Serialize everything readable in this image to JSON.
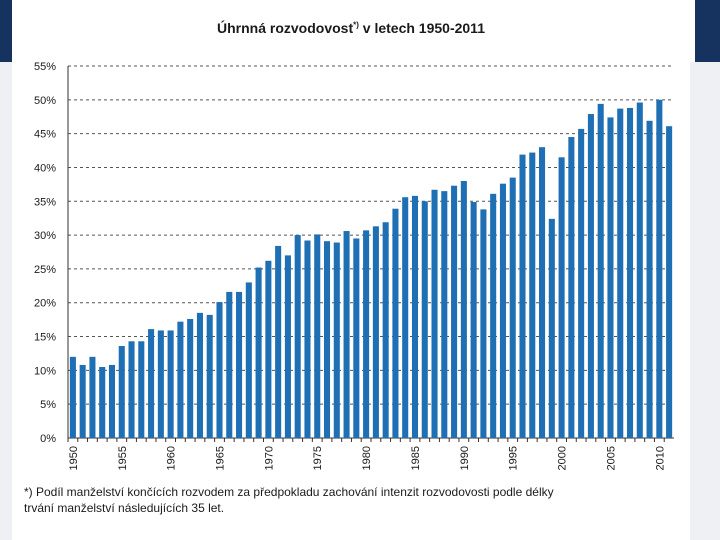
{
  "chart_data": {
    "type": "bar",
    "title": "Úhrnná rozvodovost",
    "title_note": "*)",
    "title_suffix": " v letech 1950-2011",
    "xlabel": "",
    "ylabel": "",
    "ylim": [
      0,
      55
    ],
    "y_ticks": [
      "0%",
      "5%",
      "10%",
      "15%",
      "20%",
      "25%",
      "30%",
      "35%",
      "40%",
      "45%",
      "50%",
      "55%"
    ],
    "grid": true,
    "bar_color": "#1f6fb4",
    "categories": [
      1950,
      1951,
      1952,
      1953,
      1954,
      1955,
      1956,
      1957,
      1958,
      1959,
      1960,
      1961,
      1962,
      1963,
      1964,
      1965,
      1966,
      1967,
      1968,
      1969,
      1970,
      1971,
      1972,
      1973,
      1974,
      1975,
      1976,
      1977,
      1978,
      1979,
      1980,
      1981,
      1982,
      1983,
      1984,
      1985,
      1986,
      1987,
      1988,
      1989,
      1990,
      1991,
      1992,
      1993,
      1994,
      1995,
      1996,
      1997,
      1998,
      1999,
      2000,
      2001,
      2002,
      2003,
      2004,
      2005,
      2006,
      2007,
      2008,
      2009,
      2010,
      2011
    ],
    "x_tick_labels": [
      "1950",
      "1955",
      "1960",
      "1965",
      "1970",
      "1975",
      "1980",
      "1985",
      "1990",
      "1995",
      "2000",
      "2005",
      "2010"
    ],
    "values": [
      12.0,
      10.8,
      12.0,
      10.5,
      10.8,
      13.6,
      14.3,
      14.3,
      16.1,
      15.9,
      15.9,
      17.2,
      17.6,
      18.5,
      18.2,
      20.1,
      21.6,
      21.6,
      23.0,
      25.2,
      26.2,
      28.4,
      27.0,
      30.0,
      29.2,
      30.1,
      29.1,
      28.9,
      30.6,
      29.5,
      30.7,
      31.3,
      31.9,
      33.9,
      35.6,
      35.8,
      35.0,
      36.7,
      36.5,
      37.3,
      38.0,
      34.9,
      33.8,
      36.1,
      37.6,
      38.5,
      41.9,
      42.2,
      43.0,
      32.4,
      41.5,
      44.5,
      45.7,
      47.9,
      49.4,
      47.4,
      48.7,
      48.8,
      49.6,
      46.9,
      50.0,
      46.1
    ]
  },
  "footnote": {
    "line1": "*) Podíl manželství končících rozvodem za předpokladu zachování intenzit rozvodovosti podle délky",
    "line2": "trvání manželství následujících 35 let."
  }
}
